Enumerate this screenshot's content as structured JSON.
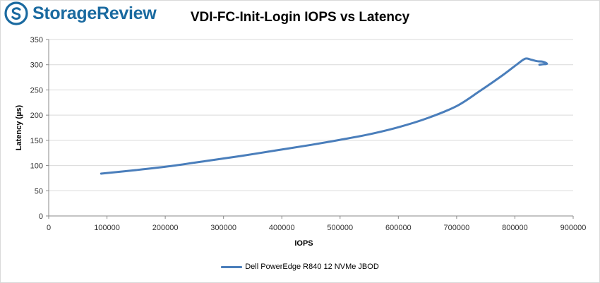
{
  "brand": {
    "name": "StorageReview",
    "logo_icon": "storagereview-logo-icon",
    "color": "#1a6aa0"
  },
  "chart_data": {
    "type": "line",
    "title": "VDI-FC-Init-Login IOPS vs Latency",
    "xlabel": "IOPS",
    "ylabel": "Latency (µs)",
    "xlim": [
      0,
      900000
    ],
    "ylim": [
      0,
      350
    ],
    "x_ticks": [
      0,
      100000,
      200000,
      300000,
      400000,
      500000,
      600000,
      700000,
      800000,
      900000
    ],
    "y_ticks": [
      0,
      50,
      100,
      150,
      200,
      250,
      300,
      350
    ],
    "grid": true,
    "legend_position": "bottom",
    "series": [
      {
        "name": "Dell PowerEdge R840 12 NVMe JBOD",
        "color": "#4a7ebb",
        "points": [
          [
            90000,
            84
          ],
          [
            150000,
            91
          ],
          [
            210000,
            99
          ],
          [
            270000,
            109
          ],
          [
            330000,
            119
          ],
          [
            390000,
            130
          ],
          [
            450000,
            141
          ],
          [
            500000,
            151
          ],
          [
            550000,
            162
          ],
          [
            600000,
            176
          ],
          [
            650000,
            194
          ],
          [
            700000,
            218
          ],
          [
            740000,
            248
          ],
          [
            780000,
            280
          ],
          [
            805000,
            302
          ],
          [
            818000,
            312
          ],
          [
            828000,
            310
          ],
          [
            838000,
            307
          ],
          [
            848000,
            306
          ],
          [
            855000,
            302
          ],
          [
            848000,
            301
          ],
          [
            842000,
            300
          ]
        ]
      }
    ]
  }
}
